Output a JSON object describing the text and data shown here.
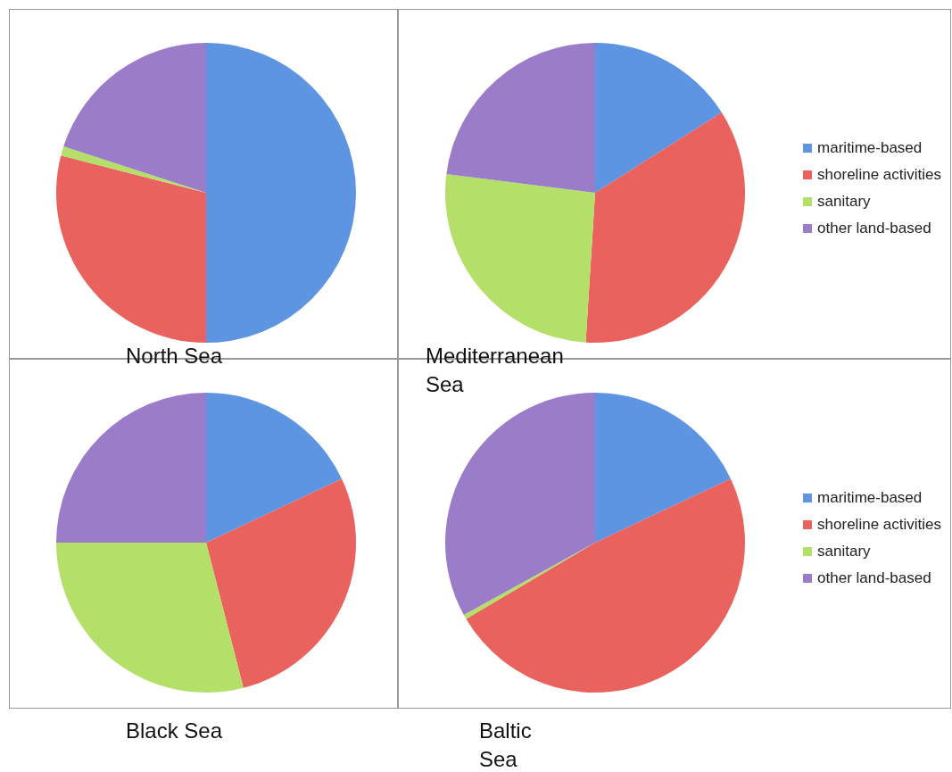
{
  "chart_data": [
    {
      "type": "pie",
      "title": "North Sea",
      "categories": [
        null,
        null,
        null,
        null
      ],
      "values": [
        50,
        29,
        1,
        20
      ],
      "colors": [
        "#5e95e2",
        "#e9625e",
        "#b4e06a",
        "#9a7cc9"
      ],
      "legend": false
    },
    {
      "type": "pie",
      "title": "Mediterranean Sea",
      "categories": [
        "maritime-based",
        "shoreline activities",
        "sanitary",
        "other land-based"
      ],
      "values": [
        16,
        35,
        26,
        23
      ],
      "colors": [
        "#5e95e2",
        "#e9625e",
        "#b4e06a",
        "#9a7cc9"
      ],
      "legend": "right"
    },
    {
      "type": "pie",
      "title": "Black Sea",
      "categories": [
        null,
        null,
        null,
        null
      ],
      "values": [
        18,
        28,
        29,
        25
      ],
      "colors": [
        "#5e95e2",
        "#e9625e",
        "#b4e06a",
        "#9a7cc9"
      ],
      "legend": false
    },
    {
      "type": "pie",
      "title": "Baltic Sea",
      "categories": [
        "maritime-based",
        "shoreline activities",
        "sanitary",
        "other land-based"
      ],
      "values": [
        18,
        48.5,
        0.5,
        33
      ],
      "colors": [
        "#5e95e2",
        "#e9625e",
        "#b4e06a",
        "#9a7cc9"
      ],
      "legend": "right"
    }
  ]
}
